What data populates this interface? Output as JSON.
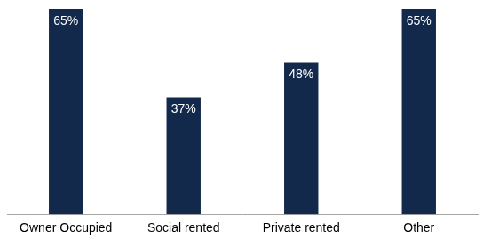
{
  "chart_data": {
    "type": "bar",
    "categories": [
      "Owner Occupied",
      "Social rented",
      "Private rented",
      "Other"
    ],
    "values": [
      65,
      37,
      48,
      65
    ],
    "value_labels": [
      "65%",
      "37%",
      "48%",
      "65%"
    ],
    "color": "#13294b",
    "ylim": [
      0,
      65
    ],
    "grid": false,
    "data_labels": true,
    "tick_labels": "x"
  }
}
